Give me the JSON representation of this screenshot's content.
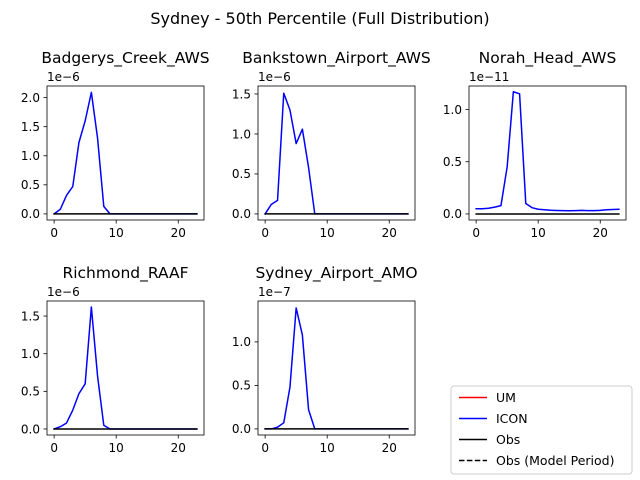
{
  "figure": {
    "suptitle": "Sydney - 50th Percentile (Full Distribution)",
    "legend": {
      "placement": "bottom-right",
      "entries": [
        {
          "label": "UM",
          "color": "#ff0000",
          "style": "solid"
        },
        {
          "label": "ICON",
          "color": "#0000ff",
          "style": "solid"
        },
        {
          "label": "Obs",
          "color": "#000000",
          "style": "solid"
        },
        {
          "label": "Obs (Model Period)",
          "color": "#000000",
          "style": "dashed"
        }
      ]
    }
  },
  "chart_data": [
    {
      "type": "line",
      "title": "Badgerys_Creek_AWS",
      "offset_label": "1e−6",
      "xlim": [
        -1.15,
        24.15
      ],
      "ylim": [
        -0.105,
        2.2
      ],
      "xticks": [
        0,
        10,
        20
      ],
      "yticks": [
        0.0,
        0.5,
        1.0,
        1.5,
        2.0
      ],
      "ytick_labels": [
        "0.0",
        "0.5",
        "1.0",
        "1.5",
        "2.0"
      ],
      "series": [
        {
          "name": "ICON",
          "color": "#0000ff",
          "x": [
            0,
            1,
            2,
            3,
            4,
            5,
            6,
            7,
            8,
            9,
            10,
            11,
            12,
            13,
            14,
            15,
            16,
            17,
            18,
            19,
            20,
            21,
            22,
            23
          ],
          "y": [
            0.0,
            0.08,
            0.32,
            0.47,
            1.23,
            1.6,
            2.09,
            1.3,
            0.13,
            0.0,
            0,
            0,
            0,
            0,
            0,
            0,
            0,
            0,
            0,
            0,
            0,
            0,
            0,
            0
          ]
        },
        {
          "name": "Obs",
          "color": "#000000",
          "x": [
            0,
            23
          ],
          "y": [
            0,
            0
          ]
        }
      ]
    },
    {
      "type": "line",
      "title": "Bankstown_Airport_AWS",
      "offset_label": "1e−6",
      "xlim": [
        -1.15,
        24.15
      ],
      "ylim": [
        -0.076,
        1.6
      ],
      "xticks": [
        0,
        10,
        20
      ],
      "yticks": [
        0.0,
        0.5,
        1.0,
        1.5
      ],
      "ytick_labels": [
        "0.0",
        "0.5",
        "1.0",
        "1.5"
      ],
      "series": [
        {
          "name": "ICON",
          "color": "#0000ff",
          "x": [
            0,
            1,
            2,
            3,
            4,
            5,
            6,
            7,
            8,
            9,
            10,
            11,
            12,
            13,
            14,
            15,
            16,
            17,
            18,
            19,
            20,
            21,
            22,
            23
          ],
          "y": [
            0.0,
            0.12,
            0.17,
            1.51,
            1.3,
            0.88,
            1.06,
            0.58,
            0.0,
            0,
            0,
            0,
            0,
            0,
            0,
            0,
            0,
            0,
            0,
            0,
            0,
            0,
            0,
            0
          ]
        },
        {
          "name": "Obs",
          "color": "#000000",
          "x": [
            0,
            23
          ],
          "y": [
            0,
            0
          ]
        }
      ]
    },
    {
      "type": "line",
      "title": "Norah_Head_AWS",
      "offset_label": "1e−11",
      "xlim": [
        -1.15,
        24.15
      ],
      "ylim": [
        -0.058,
        1.225
      ],
      "xticks": [
        0,
        10,
        20
      ],
      "yticks": [
        0.0,
        0.5,
        1.0
      ],
      "ytick_labels": [
        "0.0",
        "0.5",
        "1.0"
      ],
      "series": [
        {
          "name": "ICON",
          "color": "#0000ff",
          "x": [
            0,
            1,
            2,
            3,
            4,
            5,
            6,
            7,
            8,
            9,
            10,
            11,
            12,
            13,
            14,
            15,
            16,
            17,
            18,
            19,
            20,
            21,
            22,
            23
          ],
          "y": [
            0.05,
            0.05,
            0.055,
            0.065,
            0.08,
            0.45,
            1.17,
            1.15,
            0.1,
            0.06,
            0.045,
            0.04,
            0.035,
            0.033,
            0.032,
            0.03,
            0.032,
            0.034,
            0.032,
            0.032,
            0.034,
            0.04,
            0.042,
            0.045
          ]
        },
        {
          "name": "Obs",
          "color": "#000000",
          "x": [
            0,
            23
          ],
          "y": [
            0,
            0
          ]
        }
      ]
    },
    {
      "type": "line",
      "title": "Richmond_RAAF",
      "offset_label": "1e−6",
      "xlim": [
        -1.15,
        24.15
      ],
      "ylim": [
        -0.08,
        1.7
      ],
      "xticks": [
        0,
        10,
        20
      ],
      "yticks": [
        0.0,
        0.5,
        1.0,
        1.5
      ],
      "ytick_labels": [
        "0.0",
        "0.5",
        "1.0",
        "1.5"
      ],
      "series": [
        {
          "name": "ICON",
          "color": "#0000ff",
          "x": [
            0,
            1,
            2,
            3,
            4,
            5,
            6,
            7,
            8,
            9,
            10,
            11,
            12,
            13,
            14,
            15,
            16,
            17,
            18,
            19,
            20,
            21,
            22,
            23
          ],
          "y": [
            0.0,
            0.03,
            0.08,
            0.25,
            0.47,
            0.6,
            1.62,
            0.7,
            0.05,
            0.0,
            0,
            0,
            0,
            0,
            0,
            0,
            0,
            0,
            0,
            0,
            0,
            0,
            0,
            0
          ]
        },
        {
          "name": "Obs",
          "color": "#000000",
          "x": [
            0,
            23
          ],
          "y": [
            0,
            0
          ]
        }
      ]
    },
    {
      "type": "line",
      "title": "Sydney_Airport_AMO",
      "offset_label": "1e−7",
      "xlim": [
        -1.15,
        24.15
      ],
      "ylim": [
        -0.07,
        1.47
      ],
      "xticks": [
        0,
        10,
        20
      ],
      "yticks": [
        0.0,
        0.5,
        1.0
      ],
      "ytick_labels": [
        "0.0",
        "0.5",
        "1.0"
      ],
      "series": [
        {
          "name": "ICON",
          "color": "#0000ff",
          "x": [
            0,
            1,
            2,
            3,
            4,
            5,
            6,
            7,
            8,
            9,
            10,
            11,
            12,
            13,
            14,
            15,
            16,
            17,
            18,
            19,
            20,
            21,
            22,
            23
          ],
          "y": [
            0.0,
            0.0,
            0.02,
            0.07,
            0.48,
            1.39,
            1.08,
            0.22,
            0.0,
            0,
            0,
            0,
            0,
            0,
            0,
            0,
            0,
            0,
            0,
            0,
            0,
            0,
            0,
            0
          ]
        },
        {
          "name": "Obs",
          "color": "#000000",
          "x": [
            0,
            23
          ],
          "y": [
            0,
            0
          ]
        }
      ]
    }
  ]
}
